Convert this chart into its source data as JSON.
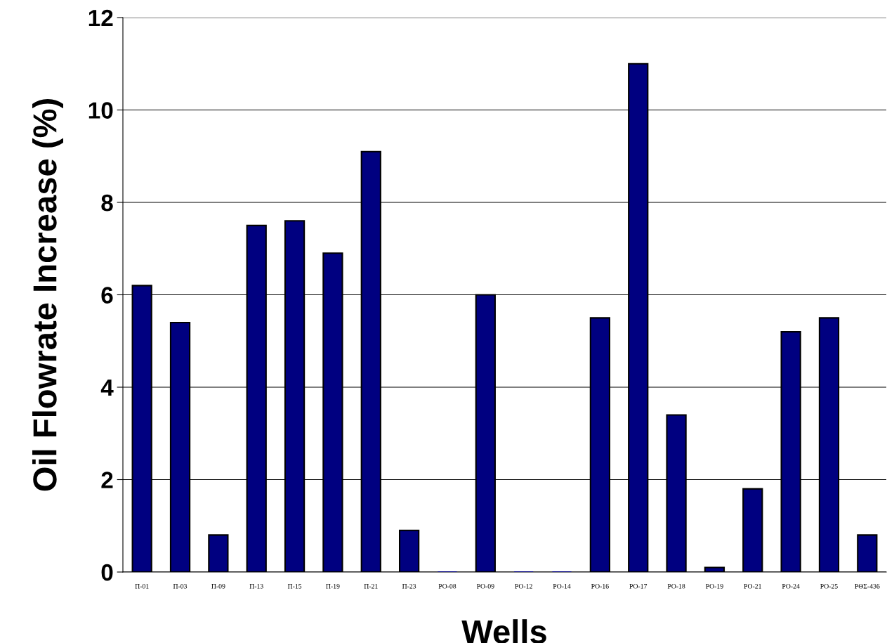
{
  "chart_data": {
    "type": "bar",
    "xlabel": "Wells",
    "ylabel": "Oil Flowrate Increase (%)",
    "categories": [
      "Π-01",
      "Π-03",
      "Π-09",
      "Π-13",
      "Π-15",
      "Π-19",
      "Π-21",
      "Π-23",
      "ΡΟ-08",
      "ΡΟ-09",
      "ΡΟ-12",
      "ΡΟ-14",
      "ΡΟ-16",
      "ΡΟ-17",
      "ΡΟ-18",
      "ΡΟ-19",
      "ΡΟ-21",
      "ΡΟ-24",
      "ΡΟ-25",
      "ΡΘΣ-436"
    ],
    "values": [
      6.2,
      5.4,
      0.8,
      7.5,
      7.6,
      6.9,
      9.1,
      0.9,
      0,
      6.0,
      0,
      0,
      5.5,
      11.0,
      3.4,
      0.1,
      1.8,
      5.2,
      5.5,
      0.8
    ],
    "color": "#000080",
    "ylim": [
      0,
      12
    ],
    "yticks": [
      0,
      2,
      4,
      6,
      8,
      10,
      12
    ],
    "grid": "y",
    "legend": false
  }
}
